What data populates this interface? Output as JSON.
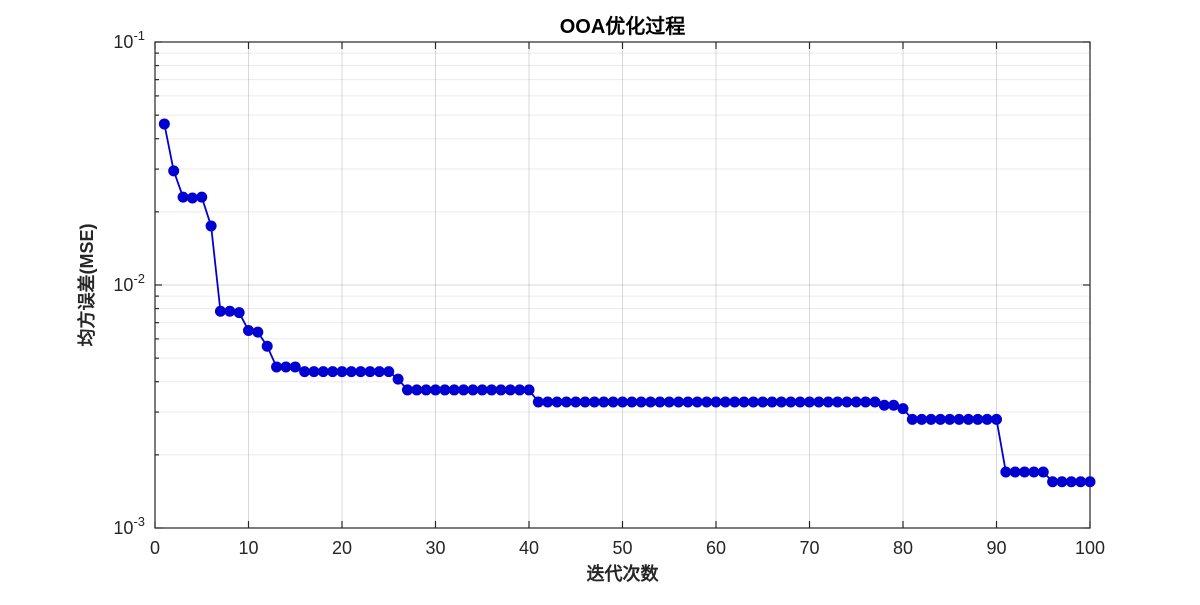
{
  "chart_data": {
    "type": "line",
    "title": "OOA优化过程",
    "xlabel": "迭代次数",
    "ylabel": "均方误差(MSE)",
    "x_range": [
      0,
      100
    ],
    "x_ticks": [
      0,
      10,
      20,
      30,
      40,
      50,
      60,
      70,
      80,
      90,
      100
    ],
    "y_scale": "log",
    "ylim": [
      0.001,
      0.1
    ],
    "y_ticks": [
      0.1,
      0.01,
      0.001
    ],
    "y_tick_base": "10",
    "y_tick_exponents": [
      "-1",
      "-2",
      "-3"
    ],
    "grid": "major+minor",
    "legend": "none",
    "line_color": "#0000d2",
    "marker": "filled-circle",
    "marker_radius": 5,
    "axis_color": "#262626",
    "series": [
      {
        "name": "MSE",
        "x_start": 1,
        "x_step": 1,
        "values": [
          0.046,
          0.0295,
          0.023,
          0.0228,
          0.023,
          0.0175,
          0.0078,
          0.0078,
          0.0077,
          0.0065,
          0.0064,
          0.0056,
          0.0046,
          0.0046,
          0.0046,
          0.0044,
          0.0044,
          0.0044,
          0.0044,
          0.0044,
          0.0044,
          0.0044,
          0.0044,
          0.0044,
          0.0044,
          0.0041,
          0.0037,
          0.0037,
          0.0037,
          0.0037,
          0.0037,
          0.0037,
          0.0037,
          0.0037,
          0.0037,
          0.0037,
          0.0037,
          0.0037,
          0.0037,
          0.0037,
          0.0033,
          0.0033,
          0.0033,
          0.0033,
          0.0033,
          0.0033,
          0.0033,
          0.0033,
          0.0033,
          0.0033,
          0.0033,
          0.0033,
          0.0033,
          0.0033,
          0.0033,
          0.0033,
          0.0033,
          0.0033,
          0.0033,
          0.0033,
          0.0033,
          0.0033,
          0.0033,
          0.0033,
          0.0033,
          0.0033,
          0.0033,
          0.0033,
          0.0033,
          0.0033,
          0.0033,
          0.0033,
          0.0033,
          0.0033,
          0.0033,
          0.0033,
          0.0033,
          0.0032,
          0.0032,
          0.0031,
          0.0028,
          0.0028,
          0.0028,
          0.0028,
          0.0028,
          0.0028,
          0.0028,
          0.0028,
          0.0028,
          0.0028,
          0.0017,
          0.0017,
          0.0017,
          0.0017,
          0.0017,
          0.00155,
          0.00155,
          0.00155,
          0.00155,
          0.00155
        ]
      }
    ]
  }
}
